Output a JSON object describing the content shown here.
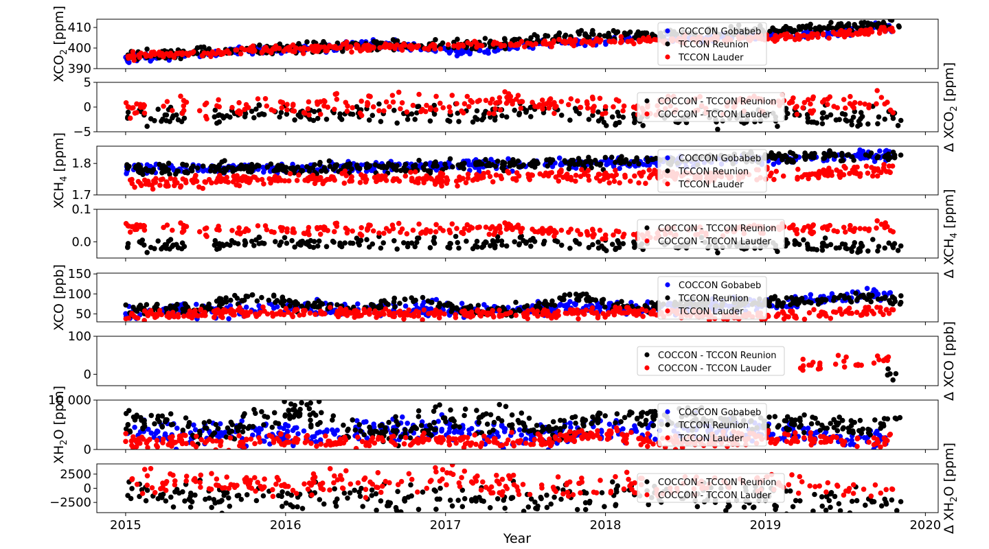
{
  "chart_data": {
    "type": "scatter",
    "xlabel": "Year",
    "xlim": [
      2014.82,
      2020.08
    ],
    "xticks": [
      {
        "v": 2015,
        "label": "2015"
      },
      {
        "v": 2016,
        "label": "2016"
      },
      {
        "v": 2017,
        "label": "2017"
      },
      {
        "v": 2018,
        "label": "2018"
      },
      {
        "v": 2019,
        "label": "2019"
      },
      {
        "v": 2020,
        "label": "2020"
      }
    ],
    "colors": {
      "COCCON Gobabeb": "#0000ff",
      "TCCON Reunion": "#000000",
      "TCCON Lauder": "#ff0000"
    },
    "panels": [
      {
        "id": "xco2",
        "ylabel": [
          "XCO",
          "2",
          " [ppm]"
        ],
        "label_side": "left",
        "ylim": [
          390,
          414
        ],
        "yticks": [
          {
            "v": 390,
            "label": "390"
          },
          {
            "v": 400,
            "label": "400"
          },
          {
            "v": 410,
            "label": "410"
          }
        ],
        "legend": [
          "COCCON Gobabeb",
          "TCCON Reunion",
          "TCCON Lauder"
        ],
        "series": [
          {
            "name": "COCCON Gobabeb",
            "color": "#0000ff",
            "x": [
              2015.0,
              2015.6,
              2016.2,
              2016.6,
              2017.1,
              2017.6,
              2018.0,
              2019.3,
              2019.7,
              2019.8
            ],
            "y": [
              395,
              398,
              400,
              402,
              398,
              402,
              404,
              407,
              410,
              409
            ],
            "spread": 1.0
          },
          {
            "name": "TCCON Reunion",
            "color": "#000000",
            "x": [
              2015.0,
              2015.5,
              2016.0,
              2016.5,
              2017.0,
              2017.5,
              2017.8,
              2018.1,
              2019.7,
              2019.85
            ],
            "y": [
              396,
              398,
              399.5,
              401.5,
              401,
              403,
              406,
              406,
              411,
              412
            ],
            "spread": 1.2
          },
          {
            "name": "TCCON Lauder",
            "color": "#ff0000",
            "x": [
              2015.0,
              2015.5,
              2016.0,
              2016.5,
              2017.0,
              2017.5,
              2018.0,
              2018.5,
              2019.0,
              2019.5,
              2019.8
            ],
            "y": [
              396,
              397.5,
              399.5,
              400.5,
              401,
              402,
              403.5,
              404,
              405,
              407,
              409
            ],
            "spread": 0.9
          }
        ]
      },
      {
        "id": "dxco2",
        "ylabel": [
          "Δ XCO",
          "2",
          " [ppm]"
        ],
        "label_side": "right",
        "ylim": [
          -5,
          5
        ],
        "yticks": [
          {
            "v": -5,
            "label": "−5"
          },
          {
            "v": 0,
            "label": "0"
          },
          {
            "v": 5,
            "label": "5"
          }
        ],
        "legend": [
          "COCCON - TCCON Reunion",
          "COCCON - TCCON Lauder"
        ],
        "series": [
          {
            "name": "COCCON - TCCON Reunion",
            "color": "#000000",
            "x": [
              2015.0,
              2015.6,
              2016.3,
              2016.7,
              2017.1,
              2017.6,
              2017.9,
              2018.1,
              2019.8,
              2019.85
            ],
            "y": [
              -1.5,
              -1.5,
              -1.5,
              -1,
              -1.5,
              -0.5,
              -1.5,
              -2.5,
              -2,
              -3
            ],
            "spread": 1.0
          },
          {
            "name": "COCCON - TCCON Lauder",
            "color": "#ff0000",
            "x": [
              2015.0,
              2015.5,
              2016.3,
              2016.7,
              2017.0,
              2017.5,
              2018.0,
              2019.2,
              2019.5,
              2019.8
            ],
            "y": [
              -0.5,
              0.5,
              0,
              1,
              0.5,
              1,
              0,
              1,
              1,
              0
            ],
            "spread": 1.1
          }
        ]
      },
      {
        "id": "xch4",
        "ylabel": [
          "XCH",
          "4",
          " [ppm]"
        ],
        "label_side": "left",
        "ylim": [
          1.7,
          1.855
        ],
        "yticks": [
          {
            "v": 1.7,
            "label": "1.7"
          },
          {
            "v": 1.8,
            "label": "1.8"
          }
        ],
        "legend": [
          "COCCON Gobabeb",
          "TCCON Reunion",
          "TCCON Lauder"
        ],
        "series": [
          {
            "name": "COCCON Gobabeb",
            "color": "#0000ff",
            "x": [
              2015.0,
              2015.8,
              2016.5,
              2017.2,
              2017.9,
              2019.2,
              2019.5,
              2019.8
            ],
            "y": [
              1.78,
              1.785,
              1.79,
              1.795,
              1.8,
              1.815,
              1.825,
              1.825
            ],
            "spread": 0.008
          },
          {
            "name": "TCCON Reunion",
            "color": "#000000",
            "x": [
              2015.0,
              2015.5,
              2016.0,
              2016.5,
              2017.0,
              2017.5,
              2018.0,
              2019.7,
              2019.85
            ],
            "y": [
              1.78,
              1.785,
              1.785,
              1.79,
              1.79,
              1.8,
              1.805,
              1.825,
              1.825
            ],
            "spread": 0.009
          },
          {
            "name": "TCCON Lauder",
            "color": "#ff0000",
            "x": [
              2015.0,
              2015.5,
              2016.0,
              2016.5,
              2017.0,
              2017.5,
              2018.0,
              2018.5,
              2019.0,
              2019.5,
              2019.8
            ],
            "y": [
              1.735,
              1.745,
              1.75,
              1.755,
              1.75,
              1.76,
              1.76,
              1.76,
              1.765,
              1.775,
              1.78
            ],
            "spread": 0.01
          }
        ]
      },
      {
        "id": "dxch4",
        "ylabel": [
          "Δ XCH",
          "4",
          " [ppm]"
        ],
        "label_side": "right",
        "ylim": [
          -0.05,
          0.1
        ],
        "yticks": [
          {
            "v": 0.0,
            "label": "0.0"
          },
          {
            "v": 0.1,
            "label": "0.1"
          }
        ],
        "legend": [
          "COCCON - TCCON Reunion",
          "COCCON - TCCON Lauder"
        ],
        "series": [
          {
            "name": "COCCON - TCCON Reunion",
            "color": "#000000",
            "x": [
              2015.0,
              2015.6,
              2016.3,
              2016.7,
              2017.1,
              2017.6,
              2018.0,
              2019.8,
              2019.85
            ],
            "y": [
              -0.01,
              -0.005,
              -0.005,
              0,
              -0.005,
              0,
              -0.01,
              -0.015,
              -0.015
            ],
            "spread": 0.01
          },
          {
            "name": "COCCON - TCCON Lauder",
            "color": "#ff0000",
            "x": [
              2015.0,
              2015.5,
              2016.3,
              2016.7,
              2017.0,
              2017.5,
              2018.0,
              2019.2,
              2019.5,
              2019.8
            ],
            "y": [
              0.045,
              0.04,
              0.035,
              0.04,
              0.04,
              0.04,
              0.02,
              0.045,
              0.04,
              0.04
            ],
            "spread": 0.009
          }
        ]
      },
      {
        "id": "xco",
        "ylabel": [
          "XCO [ppb]"
        ],
        "label_side": "left",
        "ylim": [
          30,
          152
        ],
        "yticks": [
          {
            "v": 50,
            "label": "50"
          },
          {
            "v": 100,
            "label": "100"
          },
          {
            "v": 150,
            "label": "150"
          }
        ],
        "legend": [
          "COCCON Gobabeb",
          "TCCON Reunion",
          "TCCON Lauder"
        ],
        "series": [
          {
            "name": "COCCON Gobabeb",
            "color": "#0000ff",
            "x": [
              2015.0,
              2016.0,
              2017.0,
              2018.0,
              2019.1,
              2019.3,
              2019.5,
              2019.7,
              2019.8
            ],
            "y": [
              55,
              65,
              60,
              65,
              75,
              80,
              90,
              105,
              85
            ],
            "spread": 9
          },
          {
            "name": "TCCON Reunion",
            "color": "#000000",
            "x": [
              2015.0,
              2015.5,
              2015.8,
              2016.1,
              2016.5,
              2016.8,
              2017.1,
              2017.5,
              2017.8,
              2018.1,
              2019.7,
              2019.85
            ],
            "y": [
              60,
              65,
              95,
              70,
              65,
              90,
              60,
              60,
              95,
              65,
              90,
              80
            ],
            "spread": 7
          },
          {
            "name": "TCCON Lauder",
            "color": "#ff0000",
            "x": [
              2015.0,
              2015.5,
              2016.0,
              2016.5,
              2017.0,
              2017.5,
              2018.0,
              2018.5,
              2019.0,
              2019.5,
              2019.8
            ],
            "y": [
              45,
              50,
              55,
              50,
              50,
              50,
              55,
              50,
              45,
              55,
              60
            ],
            "spread": 6
          }
        ]
      },
      {
        "id": "dxco",
        "ylabel": [
          "Δ XCO [ppb]"
        ],
        "label_side": "right",
        "ylim": [
          -30,
          100
        ],
        "yticks": [
          {
            "v": 0,
            "label": "0"
          },
          {
            "v": 100,
            "label": "100"
          }
        ],
        "legend": [
          "COCCON - TCCON Reunion",
          "COCCON - TCCON Lauder"
        ],
        "series": [
          {
            "name": "COCCON - TCCON Reunion",
            "color": "#000000",
            "x": [
              2019.75,
              2019.8,
              2019.85
            ],
            "y": [
              5,
              0,
              10
            ],
            "spread": 10
          },
          {
            "name": "COCCON - TCCON Lauder",
            "color": "#ff0000",
            "x": [
              2019.2,
              2019.35,
              2019.5,
              2019.65,
              2019.8
            ],
            "y": [
              25,
              25,
              30,
              40,
              35
            ],
            "spread": 10
          }
        ]
      },
      {
        "id": "xh2o",
        "ylabel": [
          "XH",
          "2",
          "O [ppm]"
        ],
        "label_side": "left",
        "ylim": [
          0,
          10000
        ],
        "yticks": [
          {
            "v": 0,
            "label": "0"
          },
          {
            "v": 10000,
            "label": "10 000"
          }
        ],
        "legend": [
          "COCCON Gobabeb",
          "TCCON Reunion",
          "TCCON Lauder"
        ],
        "series": [
          {
            "name": "COCCON Gobabeb",
            "color": "#0000ff",
            "x": [
              2015.0,
              2016.0,
              2017.0,
              2017.5,
              2018.0,
              2019.2,
              2019.5,
              2019.8
            ],
            "y": [
              3000,
              3000,
              4500,
              2500,
              4000,
              3500,
              1500,
              2500
            ],
            "spread": 1200
          },
          {
            "name": "TCCON Reunion",
            "color": "#000000",
            "x": [
              2015.0,
              2015.3,
              2015.6,
              2015.9,
              2016.1,
              2016.4,
              2016.7,
              2017.0,
              2017.3,
              2017.6,
              2017.9,
              2018.1,
              2019.7,
              2019.85
            ],
            "y": [
              6000,
              5000,
              3500,
              6000,
              8000,
              4000,
              4000,
              5500,
              6500,
              3500,
              6000,
              7000,
              4000,
              6000
            ],
            "spread": 1300
          },
          {
            "name": "TCCON Lauder",
            "color": "#ff0000",
            "x": [
              2015.0,
              2015.5,
              2016.0,
              2016.5,
              2017.0,
              2017.5,
              2018.0,
              2018.5,
              2019.0,
              2019.5,
              2019.8
            ],
            "y": [
              2000,
              1500,
              2000,
              1500,
              2000,
              1500,
              3000,
              1500,
              2500,
              1500,
              2000
            ],
            "spread": 700
          }
        ]
      },
      {
        "id": "dxh2o",
        "ylabel": [
          "Δ XH",
          "2",
          "O [ppm]"
        ],
        "label_side": "right",
        "ylim": [
          -4300,
          4300
        ],
        "yticks": [
          {
            "v": -2500,
            "label": "−2500"
          },
          {
            "v": 0,
            "label": "0"
          },
          {
            "v": 2500,
            "label": "2500"
          }
        ],
        "legend": [
          "COCCON - TCCON Reunion",
          "COCCON - TCCON Lauder"
        ],
        "series": [
          {
            "name": "COCCON - TCCON Reunion",
            "color": "#000000",
            "x": [
              2015.0,
              2015.5,
              2016.3,
              2016.7,
              2017.0,
              2017.5,
              2018.0,
              2019.8,
              2019.85
            ],
            "y": [
              -500,
              -1500,
              -2000,
              -1500,
              -2000,
              -2000,
              -1000,
              -2500,
              -2000
            ],
            "spread": 1200
          },
          {
            "name": "COCCON - TCCON Lauder",
            "color": "#ff0000",
            "x": [
              2015.0,
              2015.5,
              2016.3,
              2016.7,
              2017.0,
              2017.5,
              2018.0,
              2019.2,
              2019.5,
              2019.8
            ],
            "y": [
              1500,
              500,
              1000,
              500,
              2000,
              0,
              500,
              1000,
              -500,
              0
            ],
            "spread": 1100
          }
        ]
      }
    ]
  }
}
